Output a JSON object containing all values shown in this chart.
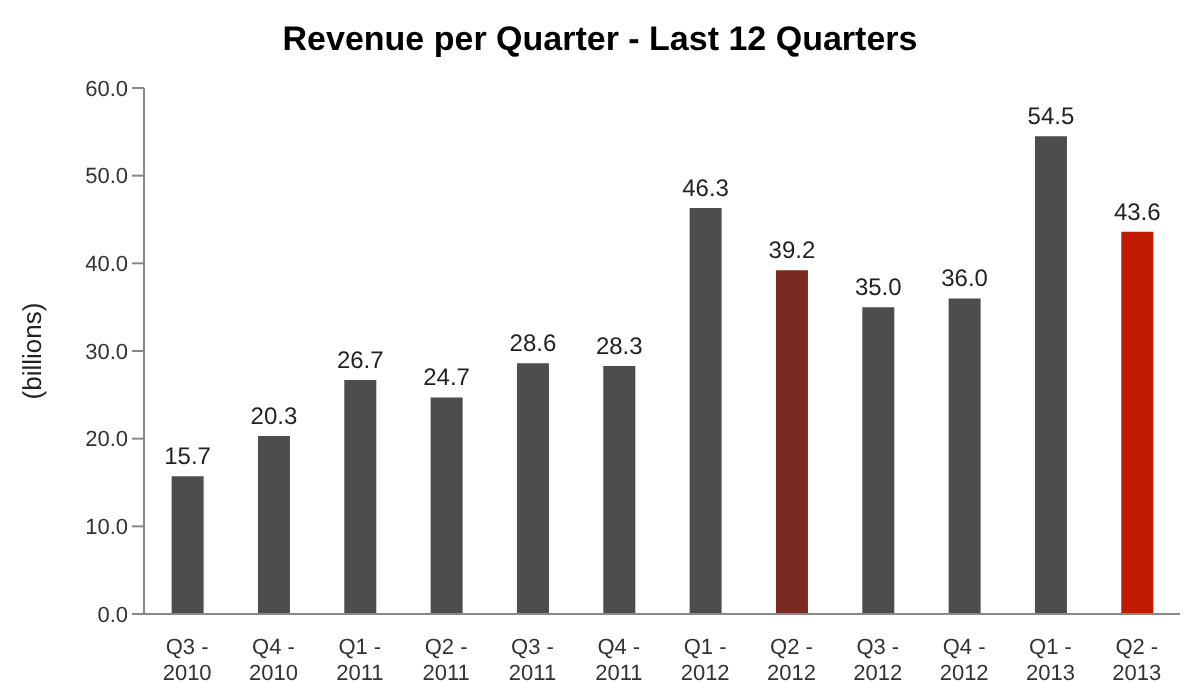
{
  "chart_data": {
    "type": "bar",
    "title": "Revenue per Quarter - Last 12 Quarters",
    "ylabel": "(billions)",
    "categories": [
      "Q3 - 2010",
      "Q4 - 2010",
      "Q1 - 2011",
      "Q2 - 2011",
      "Q3 - 2011",
      "Q4 - 2011",
      "Q1 - 2012",
      "Q2 - 2012",
      "Q3 - 2012",
      "Q4 - 2012",
      "Q1 - 2013",
      "Q2 - 2013"
    ],
    "values": [
      15.7,
      20.3,
      26.7,
      24.7,
      28.6,
      28.3,
      46.3,
      39.2,
      35.0,
      36.0,
      54.5,
      43.6
    ],
    "value_labels": [
      "15.7",
      "20.3",
      "26.7",
      "24.7",
      "28.6",
      "28.3",
      "46.3",
      "39.2",
      "35.0",
      "36.0",
      "54.5",
      "43.6"
    ],
    "colors": [
      "#4d4d4d",
      "#4d4d4d",
      "#4d4d4d",
      "#4d4d4d",
      "#4d4d4d",
      "#4d4d4d",
      "#4d4d4d",
      "#7b2a22",
      "#4d4d4d",
      "#4d4d4d",
      "#4d4d4d",
      "#c01a00"
    ],
    "ylim": [
      0,
      60
    ],
    "yticks": [
      {
        "value": 0,
        "label": "0.0"
      },
      {
        "value": 10,
        "label": "10.0"
      },
      {
        "value": 20,
        "label": "20.0"
      },
      {
        "value": 30,
        "label": "30.0"
      },
      {
        "value": 40,
        "label": "40.0"
      },
      {
        "value": 50,
        "label": "50.0"
      },
      {
        "value": 60,
        "label": "60.0"
      }
    ],
    "grid": false,
    "legend": false
  }
}
